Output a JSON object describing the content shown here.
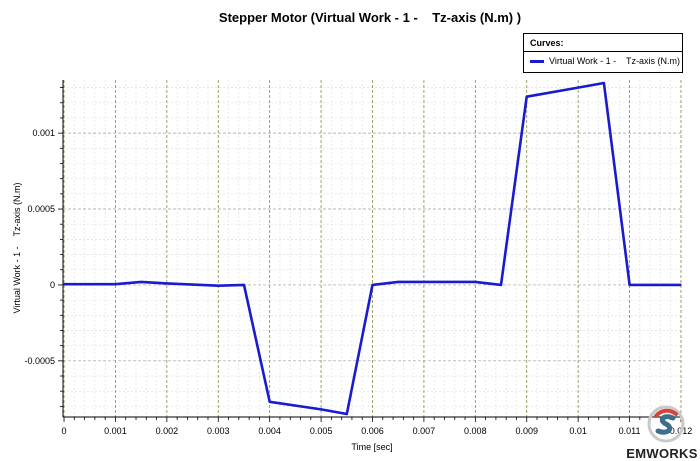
{
  "chart_data": {
    "type": "line",
    "title": "Stepper Motor (Virtual Work - 1 -    Tz-axis (N.m) )",
    "xlabel": "Time [sec]",
    "ylabel": "Virtual Work - 1 -    Tz-axis (N.m)",
    "xlim": [
      -2e-05,
      0.01202
    ],
    "ylim": [
      -0.00087,
      0.00135
    ],
    "x_ticks": [
      0,
      0.001,
      0.002,
      0.003,
      0.004,
      0.005,
      0.006,
      0.007,
      0.008,
      0.009,
      0.01,
      0.011,
      0.012
    ],
    "x_tick_labels": [
      "0",
      "0.001",
      "0.002",
      "0.003",
      "0.004",
      "0.005",
      "0.006",
      "0.007",
      "0.008",
      "0.009",
      "0.01",
      "0.011",
      "0.012"
    ],
    "y_ticks": [
      -0.0005,
      0,
      0.0005,
      0.001
    ],
    "y_tick_labels": [
      "-0.0005",
      "0",
      "0.0005",
      "0.001"
    ],
    "grid": true,
    "legend_position": "top-right",
    "legend_title": "Curves:",
    "series": [
      {
        "name": "Virtual Work - 1 -    Tz-axis (N.m)",
        "color": "#1a1ad0",
        "x": [
          0,
          0.001,
          0.0015,
          0.002,
          0.003,
          0.0035,
          0.004,
          0.005,
          0.0055,
          0.006,
          0.0065,
          0.007,
          0.008,
          0.0085,
          0.009,
          0.01,
          0.0105,
          0.011,
          0.012
        ],
        "y": [
          5e-06,
          5e-06,
          2e-05,
          1e-05,
          -5e-06,
          0,
          -0.00077,
          -0.00082,
          -0.00085,
          0,
          2e-05,
          2e-05,
          2e-05,
          0,
          0.00124,
          0.0013,
          0.00133,
          0,
          0
        ]
      }
    ]
  },
  "brand": {
    "name": "EMWORKS",
    "logo_icon": "emworks-logo-icon"
  }
}
